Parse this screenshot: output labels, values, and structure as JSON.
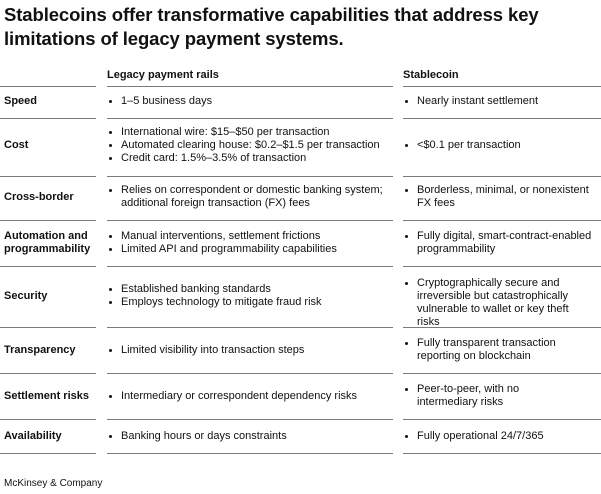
{
  "title": "Stablecoins offer transformative capabilities that address key limitations of legacy payment systems.",
  "columns": {
    "legacy": "Legacy payment rails",
    "stablecoin": "Stablecoin"
  },
  "rows": [
    {
      "label": "Speed",
      "legacy": [
        "1–5 business days"
      ],
      "stablecoin": [
        "Nearly instant settlement"
      ]
    },
    {
      "label": "Cost",
      "legacy": [
        "International wire: $15–$50 per transaction",
        "Automated clearing house: $0.2–$1.5 per transaction",
        "Credit card: 1.5%–3.5% of transaction"
      ],
      "stablecoin": [
        "<$0.1 per transaction"
      ]
    },
    {
      "label": "Cross-border",
      "legacy": [
        "Relies on correspondent or domestic banking system; additional foreign transaction (FX) fees"
      ],
      "stablecoin": [
        "Borderless, minimal, or nonexistent FX fees"
      ]
    },
    {
      "label": "Automation and programmability",
      "legacy": [
        "Manual interventions, settlement frictions",
        "Limited API and programmability capabilities"
      ],
      "stablecoin": [
        "Fully digital, smart-contract-enabled programmability"
      ]
    },
    {
      "label": "Security",
      "legacy": [
        "Established banking standards",
        "Employs technology to mitigate fraud risk"
      ],
      "stablecoin": [
        "Cryptographically secure and irreversible but catastrophically vulnerable to wallet or key theft risks"
      ]
    },
    {
      "label": "Transparency",
      "legacy": [
        "Limited visibility into transaction steps"
      ],
      "stablecoin": [
        "Fully transparent transaction reporting on blockchain"
      ]
    },
    {
      "label": "Settlement risks",
      "legacy": [
        "Intermediary or correspondent dependency risks"
      ],
      "stablecoin": [
        "Peer-to-peer, with no intermediary risks"
      ]
    },
    {
      "label": "Availability",
      "legacy": [
        "Banking hours or days constraints"
      ],
      "stablecoin": [
        "Fully operational 24/7/365"
      ]
    }
  ],
  "footer": "McKinsey & Company"
}
